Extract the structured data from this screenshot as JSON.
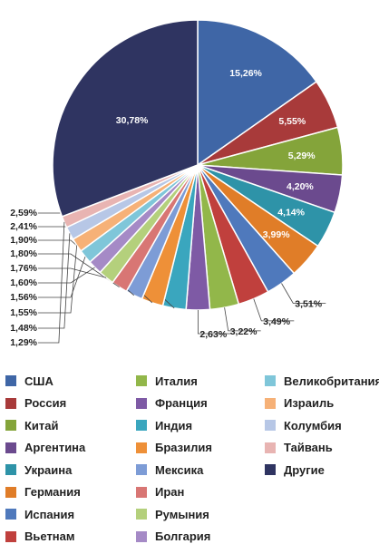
{
  "chart_data": {
    "type": "pie",
    "direction": "clockwise, starting at 12 o'clock",
    "slices": [
      {
        "name": "США",
        "value": 15.26,
        "label": "15,26%",
        "color": "#3f66a6"
      },
      {
        "name": "Россия",
        "value": 5.55,
        "label": "5,55%",
        "color": "#a83a3a"
      },
      {
        "name": "Китай",
        "value": 5.29,
        "label": "5,29%",
        "color": "#84a43a"
      },
      {
        "name": "Аргентина",
        "value": 4.2,
        "label": "4,20%",
        "color": "#6b4a8e"
      },
      {
        "name": "Украина",
        "value": 4.14,
        "label": "4,14%",
        "color": "#2e93a8"
      },
      {
        "name": "Германия",
        "value": 3.99,
        "label": "3,99%",
        "color": "#e07d28"
      },
      {
        "name": "Испания",
        "value": 3.51,
        "label": "3,51%",
        "color": "#4f79bc"
      },
      {
        "name": "Вьетнам",
        "value": 3.49,
        "label": "3,49%",
        "color": "#c0403d"
      },
      {
        "name": "Италия",
        "value": 3.22,
        "label": "3,22%",
        "color": "#92b74a"
      },
      {
        "name": "Франция",
        "value": 2.63,
        "label": "2,63%",
        "color": "#7e5aa5"
      },
      {
        "name": "Индия",
        "value": 2.59,
        "label": "2,59%",
        "color": "#3aa6be"
      },
      {
        "name": "Бразилия",
        "value": 2.41,
        "label": "2,41%",
        "color": "#ee9038"
      },
      {
        "name": "Мексика",
        "value": 1.9,
        "label": "1,90%",
        "color": "#7d9cd6"
      },
      {
        "name": "Иран",
        "value": 1.8,
        "label": "1,80%",
        "color": "#d87674"
      },
      {
        "name": "Румыния",
        "value": 1.76,
        "label": "1,76%",
        "color": "#b4d07c"
      },
      {
        "name": "Болгария",
        "value": 1.6,
        "label": "1,60%",
        "color": "#a58ac6"
      },
      {
        "name": "Великобритания",
        "value": 1.56,
        "label": "1,56%",
        "color": "#7fc6d9"
      },
      {
        "name": "Израиль",
        "value": 1.55,
        "label": "1,55%",
        "color": "#f6b177"
      },
      {
        "name": "Колумбия",
        "value": 1.48,
        "label": "1,48%",
        "color": "#b7c7e6"
      },
      {
        "name": "Тайвань",
        "value": 1.29,
        "label": "1,29%",
        "color": "#e8b4b2"
      },
      {
        "name": "Другие",
        "value": 30.78,
        "label": "30,78%",
        "color": "#2f3461"
      }
    ],
    "legend": {
      "placement": "bottom, 3 columns",
      "columns": [
        [
          "США",
          "Россия",
          "Китай",
          "Аргентина",
          "Украина",
          "Германия",
          "Испания",
          "Вьетнам"
        ],
        [
          "Италия",
          "Франция",
          "Индия",
          "Бразилия",
          "Мексика",
          "Иран",
          "Румыния",
          "Болгария"
        ],
        [
          "Великобритания",
          "Израиль",
          "Колумбия",
          "Тайвань",
          "Другие"
        ]
      ]
    }
  }
}
